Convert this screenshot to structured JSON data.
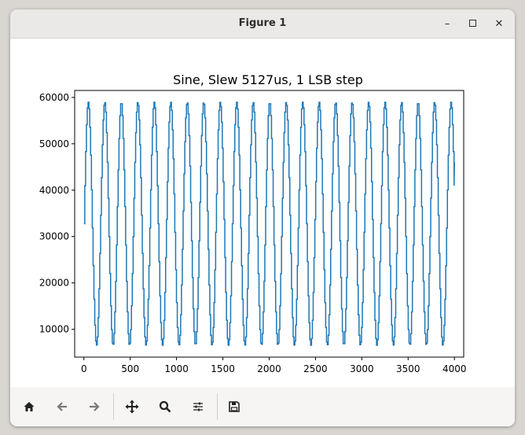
{
  "window": {
    "title": "Figure 1",
    "controls": {
      "minimize": "–",
      "maximize": "□",
      "close": "✕"
    }
  },
  "toolbar": {
    "buttons": [
      {
        "name": "home",
        "icon": "home-icon"
      },
      {
        "name": "back",
        "icon": "arrow-left-icon"
      },
      {
        "name": "forward",
        "icon": "arrow-right-icon"
      },
      {
        "name": "pan",
        "icon": "move-icon"
      },
      {
        "name": "zoom",
        "icon": "magnifier-icon"
      },
      {
        "name": "configure-subplots",
        "icon": "sliders-icon"
      },
      {
        "name": "save",
        "icon": "floppy-disk-icon"
      }
    ]
  },
  "chart_data": {
    "type": "line",
    "title": "Sine, Slew 5127us, 1 LSB step",
    "xlabel": "",
    "ylabel": "",
    "xlim": [
      -100,
      4100
    ],
    "ylim": [
      4000,
      61500
    ],
    "x_ticks": [
      0,
      500,
      1000,
      1500,
      2000,
      2500,
      3000,
      3500,
      4000
    ],
    "y_ticks": [
      10000,
      20000,
      30000,
      40000,
      50000,
      60000
    ],
    "grid": false,
    "line_color": "#1f77b4",
    "series": [
      {
        "waveform": "stepped sine",
        "x_start": 0,
        "x_end": 4000,
        "period": 178,
        "center": 32768,
        "amplitude": 26200,
        "start_value": 32768,
        "end_value": 46000,
        "step_x": 9
      }
    ]
  }
}
